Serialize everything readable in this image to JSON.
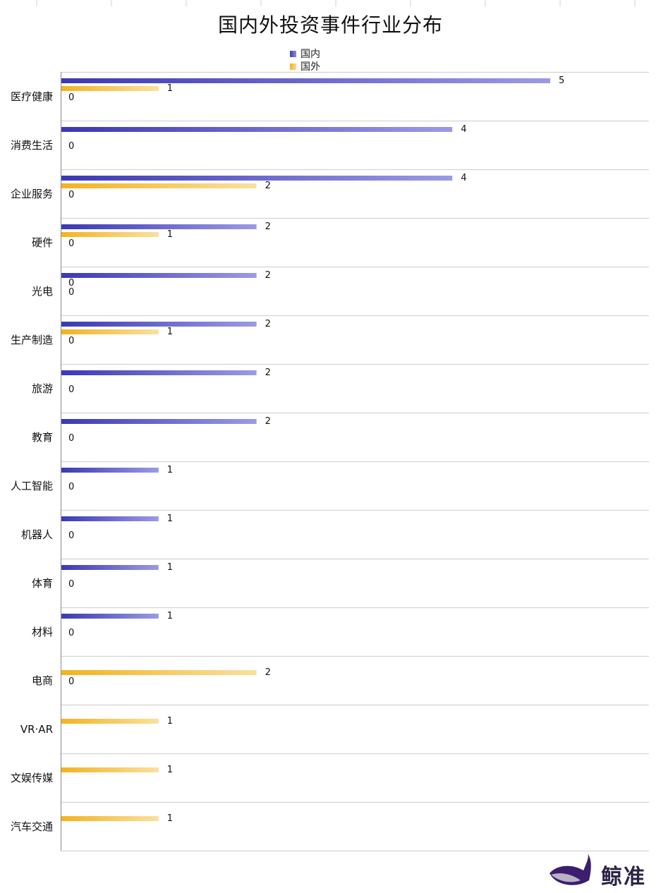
{
  "chart_data": {
    "type": "bar",
    "orientation": "horizontal",
    "title": "国内外投资事件行业分布",
    "categories": [
      "医疗健康",
      "消费生活",
      "企业服务",
      "硬件",
      "光电",
      "生产制造",
      "旅游",
      "教育",
      "人工智能",
      "机器人",
      "体育",
      "材料",
      "电商",
      "VR·AR",
      "文娱传媒",
      "汽车交通"
    ],
    "series": [
      {
        "name": "国内",
        "color": "#3f3db5",
        "values": [
          5,
          4,
          4,
          2,
          2,
          2,
          2,
          2,
          1,
          1,
          1,
          1,
          null,
          null,
          null,
          null
        ]
      },
      {
        "name": "国外",
        "color": "#f3b21f",
        "values": [
          1,
          null,
          2,
          1,
          0,
          1,
          null,
          null,
          null,
          null,
          null,
          null,
          2,
          1,
          1,
          1
        ]
      }
    ],
    "extra_zero_labels": [
      "0",
      "0",
      "0",
      "0",
      "0",
      "0",
      "0",
      "0",
      "0",
      "0",
      "0",
      "0",
      "0",
      null,
      null,
      null
    ],
    "xlim": [
      0,
      6
    ],
    "grid": true,
    "legend_position": "top-center"
  },
  "brand": {
    "name": "鲸准",
    "logo_icon": "whale-icon"
  }
}
